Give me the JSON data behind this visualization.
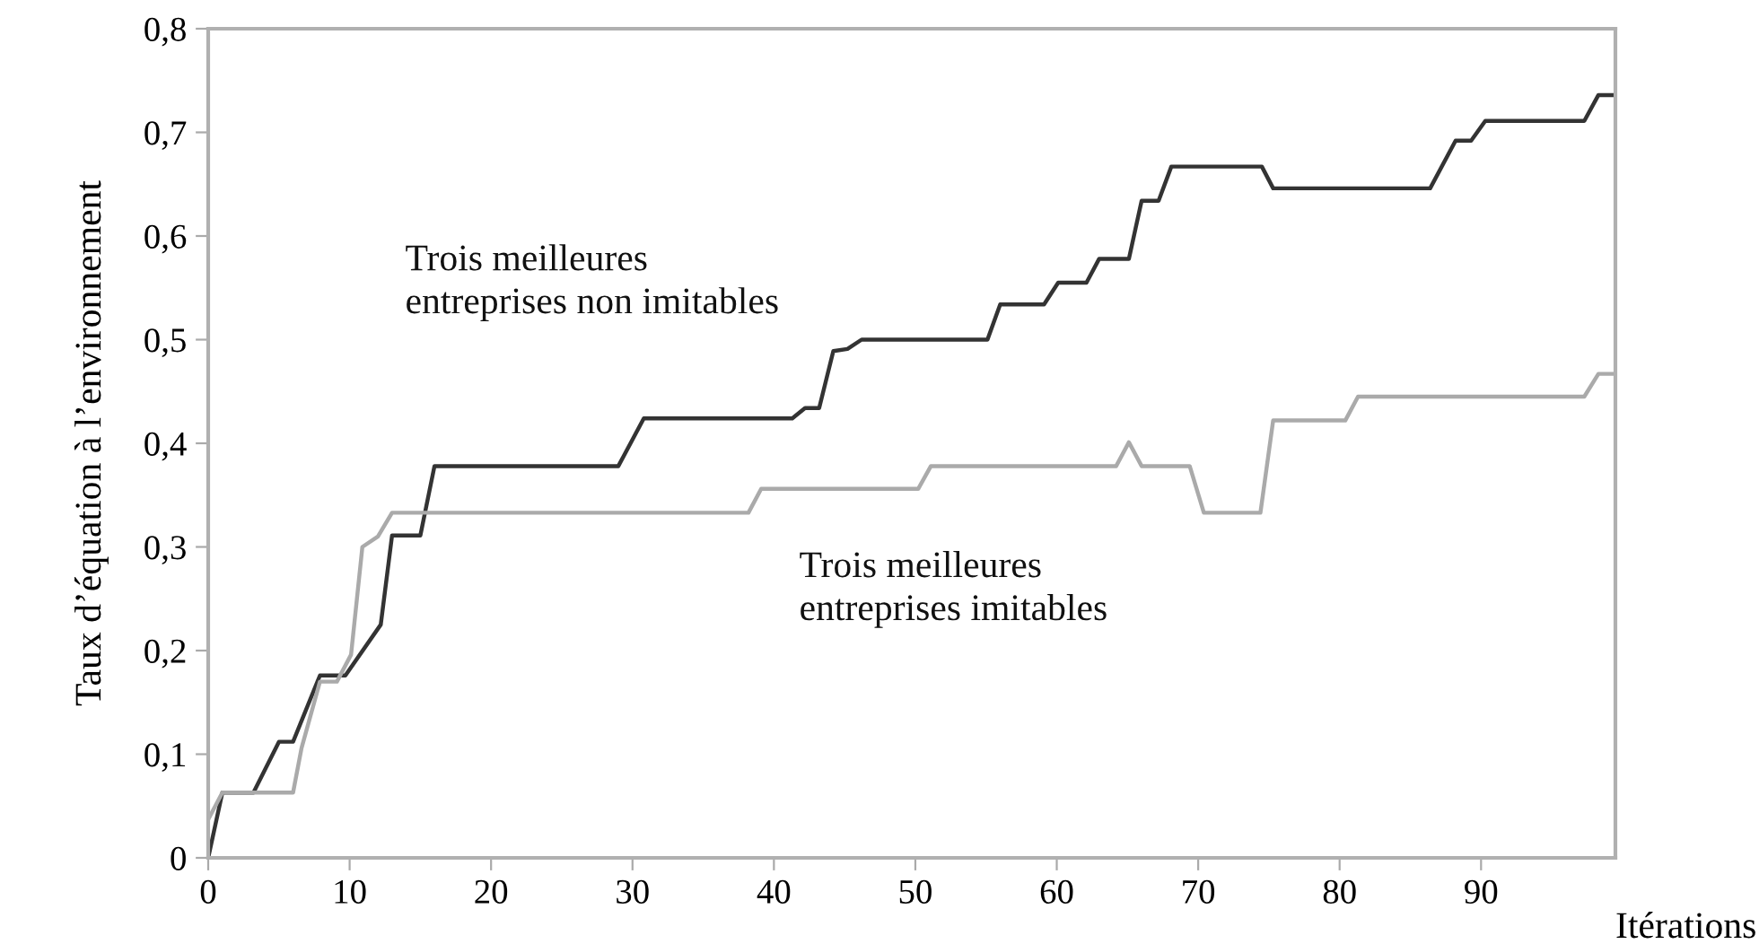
{
  "chart_data": {
    "type": "line",
    "xlabel": "Itérations",
    "ylabel": "Taux d’équation à l’environnement",
    "xlim": [
      0,
      99.5
    ],
    "ylim": [
      0,
      0.8
    ],
    "xticks": [
      0,
      10,
      20,
      30,
      40,
      50,
      60,
      70,
      80,
      90
    ],
    "yticks": [
      {
        "value": 0,
        "label": "0"
      },
      {
        "value": 0.1,
        "label": "0,1"
      },
      {
        "value": 0.2,
        "label": "0,2"
      },
      {
        "value": 0.3,
        "label": "0,3"
      },
      {
        "value": 0.4,
        "label": "0,4"
      },
      {
        "value": 0.5,
        "label": "0,5"
      },
      {
        "value": 0.6,
        "label": "0,6"
      },
      {
        "value": 0.7,
        "label": "0,7"
      },
      {
        "value": 0.8,
        "label": "0,8"
      }
    ],
    "grid": false,
    "legend": false,
    "marker": "none",
    "line_style": "solid",
    "series": [
      {
        "name": "Trois meilleures\nentreprises non imitables",
        "color": "#333333",
        "x": [
          0,
          1,
          3.2,
          5.0,
          6.0,
          7.9,
          9.7,
          12.2,
          13.0,
          15.0,
          16.0,
          29.0,
          30.8,
          41.3,
          42.2,
          43.2,
          44.2,
          45.2,
          46.2,
          55.1,
          56.0,
          59.1,
          60.1,
          62.1,
          63.0,
          65.1,
          66.0,
          67.2,
          68.1,
          74.5,
          75.3,
          86.4,
          88.2,
          89.3,
          90.3,
          97.3,
          98.3,
          99.5
        ],
        "values": [
          0,
          0.063,
          0.063,
          0.112,
          0.112,
          0.176,
          0.176,
          0.225,
          0.311,
          0.311,
          0.378,
          0.378,
          0.424,
          0.424,
          0.434,
          0.434,
          0.489,
          0.491,
          0.5,
          0.5,
          0.534,
          0.534,
          0.555,
          0.555,
          0.578,
          0.578,
          0.634,
          0.634,
          0.667,
          0.667,
          0.646,
          0.646,
          0.692,
          0.692,
          0.711,
          0.711,
          0.736,
          0.736
        ]
      },
      {
        "name": "Trois meilleures\nentreprises imitables",
        "color": "#aaaaaa",
        "x": [
          0,
          1,
          6.0,
          6.6,
          7.9,
          9.1,
          10.1,
          10.9,
          12.0,
          13.0,
          38.2,
          39.1,
          50.2,
          51.1,
          64.2,
          65.1,
          66.0,
          69.4,
          70.4,
          74.4,
          75.3,
          80.4,
          81.3,
          97.3,
          98.3,
          99.5
        ],
        "values": [
          0.037,
          0.063,
          0.063,
          0.106,
          0.17,
          0.17,
          0.196,
          0.3,
          0.31,
          0.333,
          0.333,
          0.356,
          0.356,
          0.378,
          0.378,
          0.401,
          0.378,
          0.378,
          0.333,
          0.333,
          0.422,
          0.422,
          0.445,
          0.445,
          0.467,
          0.467
        ]
      }
    ]
  }
}
